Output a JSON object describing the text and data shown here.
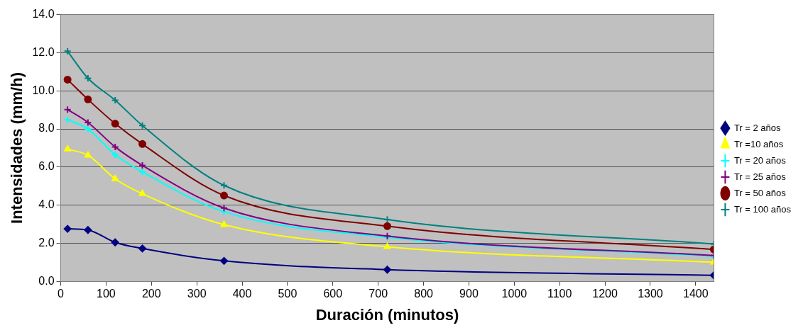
{
  "chart_data": {
    "type": "line",
    "xlabel": "Duración (minutos)",
    "ylabel": "Intensidades (mm/h)",
    "x": [
      15,
      60,
      120,
      180,
      360,
      720,
      1440
    ],
    "series": [
      {
        "name": "Tr = 2 años",
        "color": "#000080",
        "marker": "diamond",
        "values": [
          2.76,
          2.7,
          2.05,
          1.73,
          1.08,
          0.62,
          0.32
        ]
      },
      {
        "name": "Tr =10 años",
        "color": "#ffff00",
        "marker": "triangle",
        "values": [
          6.94,
          6.62,
          5.38,
          4.6,
          2.98,
          1.82,
          1.01
        ]
      },
      {
        "name": "Tr = 20 años",
        "color": "#00ffff",
        "marker": "cross",
        "values": [
          8.49,
          8.0,
          6.65,
          5.75,
          3.66,
          2.32,
          1.32
        ]
      },
      {
        "name": "Tr = 25 años",
        "color": "#800080",
        "marker": "cross",
        "values": [
          9.02,
          8.34,
          7.06,
          6.09,
          3.85,
          2.38,
          1.36
        ]
      },
      {
        "name": "Tr = 50 años",
        "color": "#800000",
        "marker": "circle",
        "values": [
          10.59,
          9.55,
          8.28,
          7.21,
          4.51,
          2.9,
          1.68
        ]
      },
      {
        "name": "Tr = 100 años",
        "color": "#008080",
        "marker": "cross",
        "values": [
          12.08,
          10.66,
          9.51,
          8.18,
          5.04,
          3.25,
          1.97
        ]
      }
    ],
    "xlim": [
      0,
      1440
    ],
    "xticks": [
      0,
      100,
      200,
      300,
      400,
      500,
      600,
      700,
      800,
      900,
      1000,
      1100,
      1200,
      1300,
      1400
    ],
    "ylim": [
      0,
      14
    ],
    "yticks": [
      {
        "value": 0,
        "label": "0.0"
      },
      {
        "value": 2,
        "label": "2.0"
      },
      {
        "value": 4,
        "label": "4.0"
      },
      {
        "value": 6,
        "label": "6.0"
      },
      {
        "value": 8,
        "label": "8.0"
      },
      {
        "value": 10,
        "label": "10.0"
      },
      {
        "value": 12,
        "label": "12.0"
      },
      {
        "value": 14,
        "label": "14.0"
      }
    ],
    "grid": "y",
    "legend": "right"
  }
}
